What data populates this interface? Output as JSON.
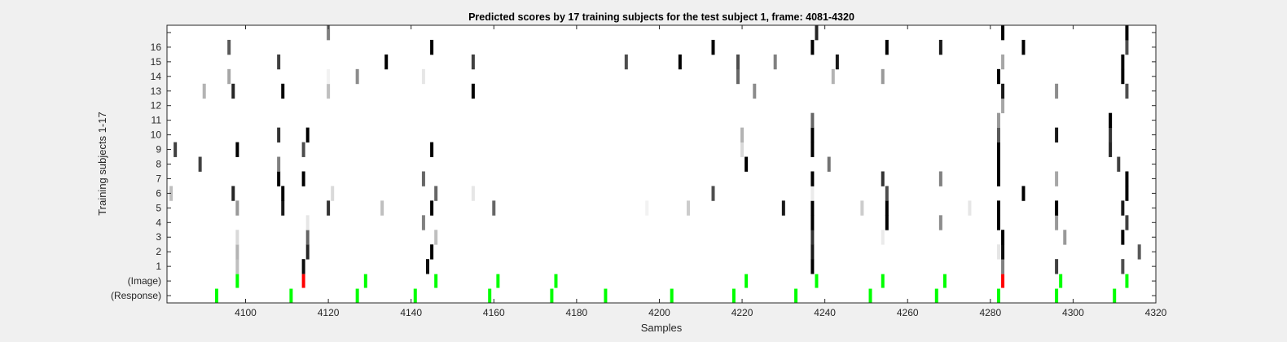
{
  "chart_data": {
    "type": "heatmap",
    "title": "Predicted scores by 17 training subjects for the test subject 1, frame: 4081-4320",
    "xlabel": "Samples",
    "ylabel": "Training subjects 1-17",
    "xlim": [
      4081,
      4320
    ],
    "xticks": [
      4100,
      4120,
      4140,
      4160,
      4180,
      4200,
      4220,
      4240,
      4260,
      4280,
      4300,
      4320
    ],
    "row_labels": [
      "(Response)",
      "(Image)",
      "1",
      "2",
      "3",
      "4",
      "5",
      "6",
      "7",
      "8",
      "9",
      "10",
      "11",
      "12",
      "13",
      "14",
      "15",
      "16",
      ""
    ],
    "colors": {
      "background": "#f0f0f0",
      "plot": "#ffffff",
      "event": "#00ff00",
      "mismatch": "#ff0000",
      "axis": "#262626"
    },
    "events": {
      "response": [
        4093,
        4111,
        4127,
        4141,
        4159,
        4174,
        4187,
        4203,
        4218,
        4233,
        4251,
        4267,
        4282,
        4296,
        4310
      ],
      "image": [
        {
          "x": 4098,
          "value": 1
        },
        {
          "x": 4114,
          "value": 0
        },
        {
          "x": 4129,
          "value": 1
        },
        {
          "x": 4146,
          "value": 1
        },
        {
          "x": 4161,
          "value": 1
        },
        {
          "x": 4175,
          "value": 1
        },
        {
          "x": 4221,
          "value": 1
        },
        {
          "x": 4238,
          "value": 1
        },
        {
          "x": 4254,
          "value": 1
        },
        {
          "x": 4269,
          "value": 1
        },
        {
          "x": 4283,
          "value": 0
        },
        {
          "x": 4297,
          "value": 1
        },
        {
          "x": 4313,
          "value": 1
        }
      ]
    },
    "scores": [
      {
        "row": 1,
        "x": 4114,
        "value": 0.95
      },
      {
        "row": 1,
        "x": 4144,
        "value": 0.95
      },
      {
        "row": 1,
        "x": 4098,
        "value": 0.25
      },
      {
        "row": 1,
        "x": 4237,
        "value": 1.0
      },
      {
        "row": 1,
        "x": 4283,
        "value": 0.5
      },
      {
        "row": 1,
        "x": 4296,
        "value": 0.75
      },
      {
        "row": 1,
        "x": 4312,
        "value": 0.7
      },
      {
        "row": 2,
        "x": 4098,
        "value": 0.3
      },
      {
        "row": 2,
        "x": 4115,
        "value": 0.85
      },
      {
        "row": 2,
        "x": 4145,
        "value": 1.0
      },
      {
        "row": 2,
        "x": 4237,
        "value": 0.9
      },
      {
        "row": 2,
        "x": 4282,
        "value": 0.1
      },
      {
        "row": 2,
        "x": 4283,
        "value": 0.95
      },
      {
        "row": 2,
        "x": 4316,
        "value": 0.65
      },
      {
        "row": 3,
        "x": 4098,
        "value": 0.15
      },
      {
        "row": 3,
        "x": 4115,
        "value": 0.6
      },
      {
        "row": 3,
        "x": 4146,
        "value": 0.25
      },
      {
        "row": 3,
        "x": 4237,
        "value": 0.8
      },
      {
        "row": 3,
        "x": 4254,
        "value": 0.08
      },
      {
        "row": 3,
        "x": 4283,
        "value": 1.0
      },
      {
        "row": 3,
        "x": 4298,
        "value": 0.4
      },
      {
        "row": 3,
        "x": 4312,
        "value": 1.0
      },
      {
        "row": 4,
        "x": 4115,
        "value": 0.1
      },
      {
        "row": 4,
        "x": 4143,
        "value": 0.5
      },
      {
        "row": 4,
        "x": 4237,
        "value": 1.0
      },
      {
        "row": 4,
        "x": 4255,
        "value": 1.0
      },
      {
        "row": 4,
        "x": 4268,
        "value": 0.45
      },
      {
        "row": 4,
        "x": 4282,
        "value": 1.0
      },
      {
        "row": 4,
        "x": 4296,
        "value": 0.4
      },
      {
        "row": 4,
        "x": 4313,
        "value": 0.75
      },
      {
        "row": 5,
        "x": 4098,
        "value": 0.4
      },
      {
        "row": 5,
        "x": 4109,
        "value": 0.9
      },
      {
        "row": 5,
        "x": 4120,
        "value": 0.8
      },
      {
        "row": 5,
        "x": 4133,
        "value": 0.25
      },
      {
        "row": 5,
        "x": 4145,
        "value": 1.0
      },
      {
        "row": 5,
        "x": 4160,
        "value": 0.6
      },
      {
        "row": 5,
        "x": 4197,
        "value": 0.05
      },
      {
        "row": 5,
        "x": 4207,
        "value": 0.2
      },
      {
        "row": 5,
        "x": 4230,
        "value": 0.9
      },
      {
        "row": 5,
        "x": 4237,
        "value": 1.0
      },
      {
        "row": 5,
        "x": 4249,
        "value": 0.2
      },
      {
        "row": 5,
        "x": 4255,
        "value": 1.0
      },
      {
        "row": 5,
        "x": 4275,
        "value": 0.1
      },
      {
        "row": 5,
        "x": 4282,
        "value": 1.0
      },
      {
        "row": 5,
        "x": 4296,
        "value": 1.0
      },
      {
        "row": 5,
        "x": 4312,
        "value": 0.9
      },
      {
        "row": 6,
        "x": 4082,
        "value": 0.25
      },
      {
        "row": 6,
        "x": 4097,
        "value": 0.85
      },
      {
        "row": 6,
        "x": 4109,
        "value": 1.0
      },
      {
        "row": 6,
        "x": 4121,
        "value": 0.15
      },
      {
        "row": 6,
        "x": 4146,
        "value": 0.6
      },
      {
        "row": 6,
        "x": 4155,
        "value": 0.1
      },
      {
        "row": 6,
        "x": 4213,
        "value": 0.7
      },
      {
        "row": 6,
        "x": 4237,
        "value": 0.08
      },
      {
        "row": 6,
        "x": 4255,
        "value": 0.7
      },
      {
        "row": 6,
        "x": 4288,
        "value": 1.0
      },
      {
        "row": 6,
        "x": 4313,
        "value": 1.0
      },
      {
        "row": 7,
        "x": 4108,
        "value": 1.0
      },
      {
        "row": 7,
        "x": 4114,
        "value": 1.0
      },
      {
        "row": 7,
        "x": 4143,
        "value": 0.6
      },
      {
        "row": 7,
        "x": 4237,
        "value": 1.0
      },
      {
        "row": 7,
        "x": 4254,
        "value": 0.8
      },
      {
        "row": 7,
        "x": 4268,
        "value": 0.5
      },
      {
        "row": 7,
        "x": 4282,
        "value": 1.0
      },
      {
        "row": 7,
        "x": 4296,
        "value": 0.35
      },
      {
        "row": 7,
        "x": 4313,
        "value": 1.0
      },
      {
        "row": 8,
        "x": 4089,
        "value": 0.75
      },
      {
        "row": 8,
        "x": 4108,
        "value": 0.5
      },
      {
        "row": 8,
        "x": 4221,
        "value": 1.0
      },
      {
        "row": 8,
        "x": 4241,
        "value": 0.55
      },
      {
        "row": 8,
        "x": 4282,
        "value": 1.0
      },
      {
        "row": 8,
        "x": 4311,
        "value": 0.75
      },
      {
        "row": 9,
        "x": 4083,
        "value": 0.75
      },
      {
        "row": 9,
        "x": 4098,
        "value": 1.0
      },
      {
        "row": 9,
        "x": 4114,
        "value": 0.7
      },
      {
        "row": 9,
        "x": 4145,
        "value": 1.0
      },
      {
        "row": 9,
        "x": 4220,
        "value": 0.15
      },
      {
        "row": 9,
        "x": 4237,
        "value": 1.0
      },
      {
        "row": 9,
        "x": 4282,
        "value": 1.0
      },
      {
        "row": 9,
        "x": 4309,
        "value": 0.85
      },
      {
        "row": 10,
        "x": 4108,
        "value": 0.8
      },
      {
        "row": 10,
        "x": 4115,
        "value": 1.0
      },
      {
        "row": 10,
        "x": 4220,
        "value": 0.3
      },
      {
        "row": 10,
        "x": 4237,
        "value": 1.0
      },
      {
        "row": 10,
        "x": 4282,
        "value": 0.65
      },
      {
        "row": 10,
        "x": 4296,
        "value": 0.9
      },
      {
        "row": 10,
        "x": 4309,
        "value": 0.8
      },
      {
        "row": 11,
        "x": 4237,
        "value": 0.6
      },
      {
        "row": 11,
        "x": 4282,
        "value": 0.4
      },
      {
        "row": 11,
        "x": 4309,
        "value": 1.0
      },
      {
        "row": 12,
        "x": 4283,
        "value": 0.35
      },
      {
        "row": 13,
        "x": 4090,
        "value": 0.3
      },
      {
        "row": 13,
        "x": 4097,
        "value": 0.85
      },
      {
        "row": 13,
        "x": 4109,
        "value": 1.0
      },
      {
        "row": 13,
        "x": 4120,
        "value": 0.25
      },
      {
        "row": 13,
        "x": 4155,
        "value": 1.0
      },
      {
        "row": 13,
        "x": 4223,
        "value": 0.45
      },
      {
        "row": 13,
        "x": 4283,
        "value": 0.9
      },
      {
        "row": 13,
        "x": 4296,
        "value": 0.45
      },
      {
        "row": 13,
        "x": 4313,
        "value": 0.7
      },
      {
        "row": 14,
        "x": 4096,
        "value": 0.35
      },
      {
        "row": 14,
        "x": 4120,
        "value": 0.05
      },
      {
        "row": 14,
        "x": 4127,
        "value": 0.45
      },
      {
        "row": 14,
        "x": 4143,
        "value": 0.1
      },
      {
        "row": 14,
        "x": 4219,
        "value": 0.6
      },
      {
        "row": 14,
        "x": 4242,
        "value": 0.3
      },
      {
        "row": 14,
        "x": 4254,
        "value": 0.4
      },
      {
        "row": 14,
        "x": 4282,
        "value": 1.0
      },
      {
        "row": 14,
        "x": 4312,
        "value": 1.0
      },
      {
        "row": 15,
        "x": 4108,
        "value": 0.75
      },
      {
        "row": 15,
        "x": 4134,
        "value": 1.0
      },
      {
        "row": 15,
        "x": 4155,
        "value": 0.75
      },
      {
        "row": 15,
        "x": 4192,
        "value": 0.7
      },
      {
        "row": 15,
        "x": 4205,
        "value": 1.0
      },
      {
        "row": 15,
        "x": 4219,
        "value": 0.7
      },
      {
        "row": 15,
        "x": 4228,
        "value": 0.5
      },
      {
        "row": 15,
        "x": 4243,
        "value": 0.9
      },
      {
        "row": 15,
        "x": 4283,
        "value": 0.35
      },
      {
        "row": 15,
        "x": 4312,
        "value": 1.0
      },
      {
        "row": 16,
        "x": 4096,
        "value": 0.65
      },
      {
        "row": 16,
        "x": 4145,
        "value": 1.0
      },
      {
        "row": 16,
        "x": 4213,
        "value": 1.0
      },
      {
        "row": 16,
        "x": 4237,
        "value": 1.0
      },
      {
        "row": 16,
        "x": 4255,
        "value": 1.0
      },
      {
        "row": 16,
        "x": 4268,
        "value": 0.9
      },
      {
        "row": 16,
        "x": 4288,
        "value": 1.0
      },
      {
        "row": 16,
        "x": 4313,
        "value": 0.7
      },
      {
        "row": 17,
        "x": 4120,
        "value": 0.5
      },
      {
        "row": 17,
        "x": 4238,
        "value": 0.85
      },
      {
        "row": 17,
        "x": 4283,
        "value": 1.0
      },
      {
        "row": 17,
        "x": 4313,
        "value": 1.0
      }
    ]
  }
}
